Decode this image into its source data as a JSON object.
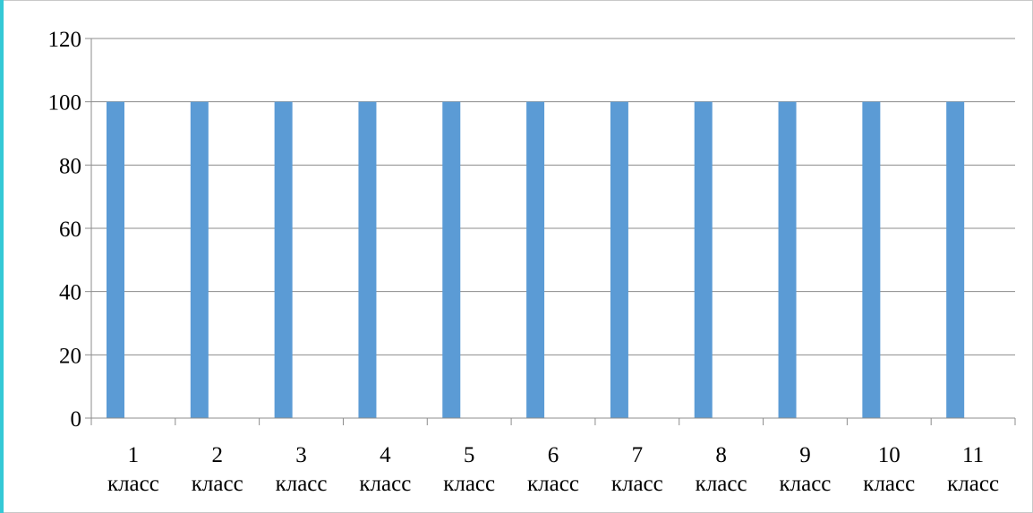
{
  "colors": {
    "bar": "#5b9bd5",
    "grid": "#8c8c8c",
    "accent": "#35c9d6",
    "text": "#000000"
  },
  "chart_data": {
    "type": "bar",
    "categories": [
      [
        "1",
        "класс"
      ],
      [
        "2",
        "класс"
      ],
      [
        "3",
        "класс"
      ],
      [
        "4",
        "класс"
      ],
      [
        "5",
        "класс"
      ],
      [
        "6",
        "класс"
      ],
      [
        "7",
        "класс"
      ],
      [
        "8",
        "класс"
      ],
      [
        "9",
        "класс"
      ],
      [
        "10",
        "класс"
      ],
      [
        "11",
        "класс"
      ]
    ],
    "values": [
      100,
      100,
      100,
      100,
      100,
      100,
      100,
      100,
      100,
      100,
      100
    ],
    "ylim": [
      0,
      120
    ],
    "yticks": [
      "0",
      "20",
      "40",
      "60",
      "80",
      "100",
      "120"
    ],
    "grid": true,
    "legend": "none",
    "title": "",
    "xlabel": "",
    "ylabel": ""
  }
}
